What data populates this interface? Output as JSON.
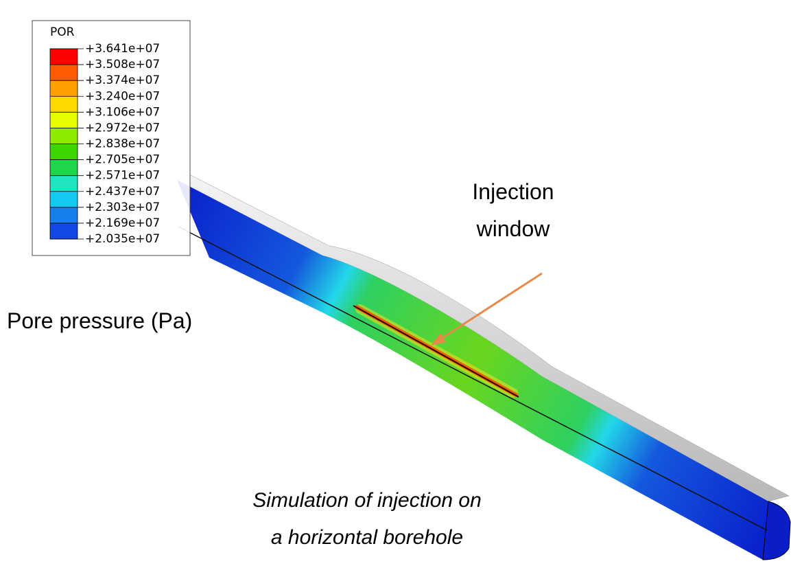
{
  "legend": {
    "title": "POR",
    "labels": [
      "+3.641e+07",
      "+3.508e+07",
      "+3.374e+07",
      "+3.240e+07",
      "+3.106e+07",
      "+2.972e+07",
      "+2.838e+07",
      "+2.705e+07",
      "+2.571e+07",
      "+2.437e+07",
      "+2.303e+07",
      "+2.169e+07",
      "+2.035e+07"
    ]
  },
  "injection_label": [
    "Injection",
    "window"
  ],
  "quantity_label": "Pore pressure (Pa)",
  "caption": [
    "Simulation of injection on",
    "a horizontal borehole"
  ]
}
